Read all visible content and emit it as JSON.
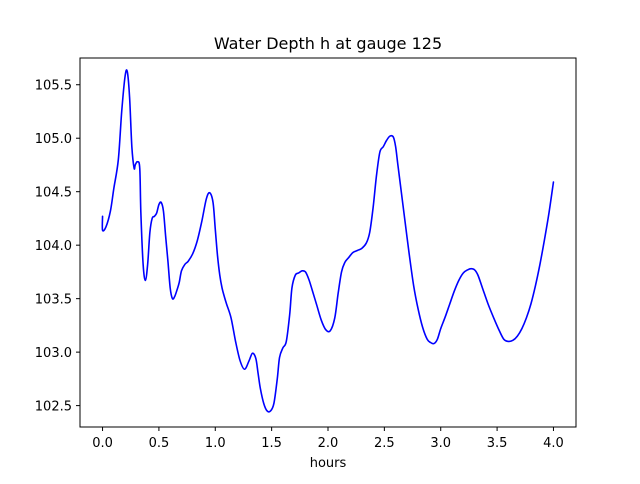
{
  "chart_data": {
    "type": "line",
    "title": "Water Depth h at gauge 125",
    "xlabel": "hours",
    "ylabel": "",
    "xlim": [
      -0.2,
      4.2
    ],
    "ylim": [
      102.3,
      105.75
    ],
    "xticks": [
      0.0,
      0.5,
      1.0,
      1.5,
      2.0,
      2.5,
      3.0,
      3.5,
      4.0
    ],
    "xtick_labels": [
      "0.0",
      "0.5",
      "1.0",
      "1.5",
      "2.0",
      "2.5",
      "3.0",
      "3.5",
      "4.0"
    ],
    "yticks": [
      102.5,
      103.0,
      103.5,
      104.0,
      104.5,
      105.0,
      105.5
    ],
    "ytick_labels": [
      "102.5",
      "103.0",
      "103.5",
      "104.0",
      "104.5",
      "105.0",
      "105.5"
    ],
    "grid": false,
    "series": [
      {
        "color": "#0000ff",
        "x": [
          0.0,
          0.0,
          0.03,
          0.07,
          0.1,
          0.14,
          0.17,
          0.2,
          0.22,
          0.24,
          0.26,
          0.28,
          0.29,
          0.31,
          0.33,
          0.34,
          0.36,
          0.38,
          0.4,
          0.42,
          0.44,
          0.46,
          0.48,
          0.5,
          0.52,
          0.54,
          0.56,
          0.58,
          0.6,
          0.62,
          0.64,
          0.66,
          0.68,
          0.7,
          0.73,
          0.76,
          0.8,
          0.84,
          0.88,
          0.92,
          0.95,
          0.98,
          1.0,
          1.02,
          1.04,
          1.06,
          1.08,
          1.1,
          1.14,
          1.18,
          1.22,
          1.26,
          1.3,
          1.33,
          1.36,
          1.38,
          1.4,
          1.43,
          1.46,
          1.49,
          1.52,
          1.55,
          1.57,
          1.6,
          1.63,
          1.66,
          1.68,
          1.71,
          1.74,
          1.77,
          1.8,
          1.83,
          1.86,
          1.9,
          1.94,
          1.98,
          2.02,
          2.06,
          2.09,
          2.12,
          2.15,
          2.18,
          2.22,
          2.26,
          2.3,
          2.34,
          2.37,
          2.4,
          2.43,
          2.46,
          2.49,
          2.52,
          2.55,
          2.58,
          2.6,
          2.62,
          2.65,
          2.68,
          2.72,
          2.76,
          2.8,
          2.84,
          2.88,
          2.91,
          2.94,
          2.97,
          3.0,
          3.04,
          3.08,
          3.12,
          3.16,
          3.2,
          3.24,
          3.27,
          3.3,
          3.33,
          3.37,
          3.42,
          3.47,
          3.52,
          3.56,
          3.6,
          3.64,
          3.68,
          3.72,
          3.76,
          3.8,
          3.84,
          3.88,
          3.92,
          3.96,
          4.0
        ],
        "y": [
          104.27,
          104.14,
          104.17,
          104.32,
          104.53,
          104.8,
          105.25,
          105.58,
          105.62,
          105.38,
          104.92,
          104.72,
          104.75,
          104.78,
          104.72,
          104.3,
          103.82,
          103.67,
          103.82,
          104.12,
          104.25,
          104.27,
          104.3,
          104.38,
          104.4,
          104.32,
          104.08,
          103.85,
          103.6,
          103.5,
          103.52,
          103.58,
          103.65,
          103.76,
          103.82,
          103.85,
          103.92,
          104.04,
          104.22,
          104.43,
          104.49,
          104.4,
          104.15,
          103.9,
          103.72,
          103.6,
          103.52,
          103.45,
          103.32,
          103.1,
          102.92,
          102.84,
          102.92,
          102.99,
          102.94,
          102.8,
          102.66,
          102.52,
          102.45,
          102.45,
          102.52,
          102.75,
          102.95,
          103.04,
          103.1,
          103.35,
          103.6,
          103.72,
          103.74,
          103.76,
          103.75,
          103.68,
          103.58,
          103.44,
          103.3,
          103.21,
          103.2,
          103.32,
          103.55,
          103.75,
          103.84,
          103.88,
          103.93,
          103.95,
          103.97,
          104.02,
          104.12,
          104.35,
          104.65,
          104.87,
          104.92,
          104.98,
          105.02,
          105.01,
          104.92,
          104.75,
          104.5,
          104.25,
          103.92,
          103.62,
          103.4,
          103.23,
          103.12,
          103.09,
          103.08,
          103.12,
          103.22,
          103.33,
          103.45,
          103.57,
          103.67,
          103.74,
          103.77,
          103.78,
          103.77,
          103.72,
          103.6,
          103.45,
          103.32,
          103.2,
          103.12,
          103.1,
          103.11,
          103.15,
          103.22,
          103.32,
          103.45,
          103.62,
          103.82,
          104.05,
          104.3,
          104.59
        ]
      }
    ]
  }
}
